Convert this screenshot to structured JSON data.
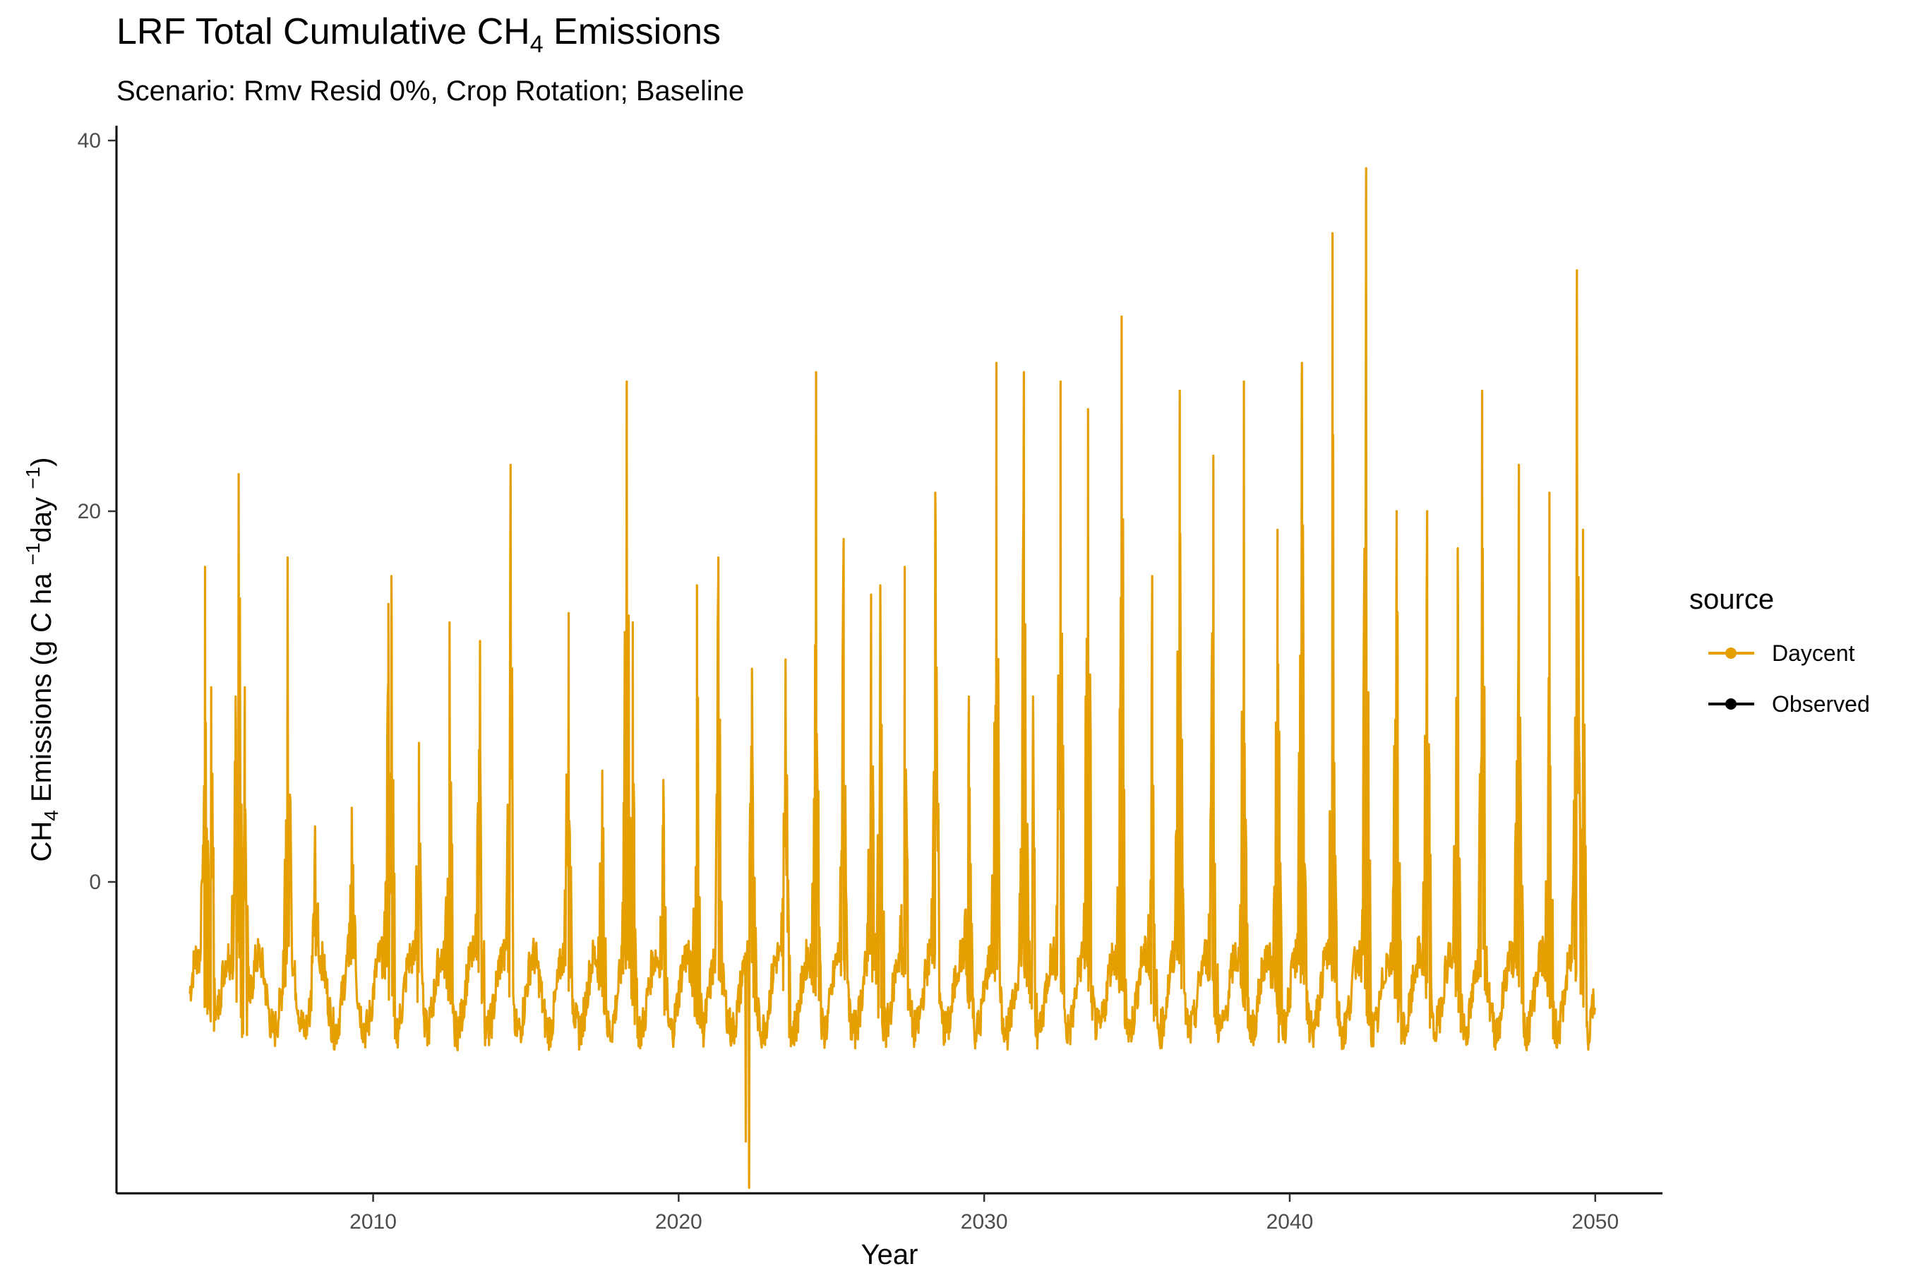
{
  "chart_data": {
    "type": "line",
    "title": "LRF Total Cumulative CH4 Emissions",
    "title_parts": [
      "LRF Total Cumulative CH",
      "4",
      " Emissions"
    ],
    "subtitle": "Scenario: Rmv Resid 0%, Crop Rotation; Baseline",
    "xlabel": "Year",
    "ylabel": "CH4 Emissions (g C ha -1 day -1)",
    "ylabel_parts": [
      "CH",
      "4",
      " Emissions (g C ha ",
      "−1",
      "day ",
      "−1",
      ")"
    ],
    "xlim": [
      2001.6,
      2052.2
    ],
    "ylim": [
      -16.8,
      40.8
    ],
    "x_ticks": [
      2010,
      2020,
      2030,
      2040,
      2050
    ],
    "x_tick_labels": [
      "2010",
      "2020",
      "2030",
      "2040",
      "2050"
    ],
    "y_ticks": [
      0,
      20,
      40
    ],
    "y_tick_labels": [
      "0",
      "20",
      "40"
    ],
    "grid": false,
    "legend": {
      "title": "source",
      "position": "right",
      "entries": [
        {
          "label": "Daycent",
          "color": "#E69F00"
        },
        {
          "label": "Observed",
          "color": "#000000"
        }
      ]
    },
    "series": [
      {
        "name": "Daycent",
        "color": "#E69F00",
        "baseline_range": [
          -8,
          -4
        ],
        "peaks": [
          {
            "x": 2004.5,
            "y": 17.0
          },
          {
            "x": 2004.7,
            "y": 10.5
          },
          {
            "x": 2005.5,
            "y": 10.0
          },
          {
            "x": 2005.6,
            "y": 22.0
          },
          {
            "x": 2005.8,
            "y": 10.5
          },
          {
            "x": 2007.2,
            "y": 17.5
          },
          {
            "x": 2008.1,
            "y": 3.0
          },
          {
            "x": 2009.3,
            "y": 4.0
          },
          {
            "x": 2010.5,
            "y": 15.0
          },
          {
            "x": 2010.6,
            "y": 16.5
          },
          {
            "x": 2011.5,
            "y": 7.5
          },
          {
            "x": 2012.5,
            "y": 14.0
          },
          {
            "x": 2013.5,
            "y": 13.0
          },
          {
            "x": 2014.5,
            "y": 22.5
          },
          {
            "x": 2016.4,
            "y": 14.5
          },
          {
            "x": 2017.5,
            "y": 6.0
          },
          {
            "x": 2018.3,
            "y": 27.0
          },
          {
            "x": 2018.5,
            "y": 14.0
          },
          {
            "x": 2019.5,
            "y": 5.5
          },
          {
            "x": 2020.6,
            "y": 16.0
          },
          {
            "x": 2021.3,
            "y": 17.5
          },
          {
            "x": 2022.4,
            "y": 11.5
          },
          {
            "x": 2023.5,
            "y": 12.0
          },
          {
            "x": 2024.5,
            "y": 27.5
          },
          {
            "x": 2025.4,
            "y": 18.5
          },
          {
            "x": 2026.3,
            "y": 15.5
          },
          {
            "x": 2026.6,
            "y": 16.0
          },
          {
            "x": 2027.4,
            "y": 17.0
          },
          {
            "x": 2028.4,
            "y": 21.0
          },
          {
            "x": 2029.5,
            "y": 10.0
          },
          {
            "x": 2030.4,
            "y": 28.0
          },
          {
            "x": 2031.3,
            "y": 27.5
          },
          {
            "x": 2031.6,
            "y": 10.0
          },
          {
            "x": 2032.5,
            "y": 27.0
          },
          {
            "x": 2033.4,
            "y": 25.5
          },
          {
            "x": 2034.5,
            "y": 30.5
          },
          {
            "x": 2035.5,
            "y": 16.5
          },
          {
            "x": 2036.4,
            "y": 26.5
          },
          {
            "x": 2037.5,
            "y": 23.0
          },
          {
            "x": 2038.5,
            "y": 27.0
          },
          {
            "x": 2039.6,
            "y": 19.0
          },
          {
            "x": 2040.4,
            "y": 28.0
          },
          {
            "x": 2041.4,
            "y": 35.0
          },
          {
            "x": 2042.5,
            "y": 38.5
          },
          {
            "x": 2043.5,
            "y": 20.0
          },
          {
            "x": 2044.5,
            "y": 20.0
          },
          {
            "x": 2045.5,
            "y": 18.0
          },
          {
            "x": 2046.3,
            "y": 26.5
          },
          {
            "x": 2047.5,
            "y": 22.5
          },
          {
            "x": 2048.5,
            "y": 21.0
          },
          {
            "x": 2049.4,
            "y": 33.0
          },
          {
            "x": 2049.6,
            "y": 19.0
          }
        ],
        "dips": [
          {
            "x": 2022.2,
            "y": -14.0
          },
          {
            "x": 2022.3,
            "y": -16.5
          }
        ]
      },
      {
        "name": "Observed",
        "color": "#000000",
        "values": []
      }
    ]
  }
}
